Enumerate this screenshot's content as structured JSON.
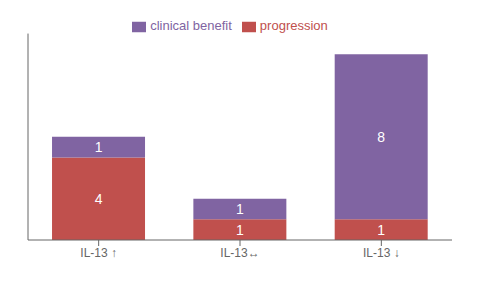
{
  "chart_data": {
    "type": "bar",
    "stacked": true,
    "categories": [
      "IL-13 ↑",
      "IL-13↔",
      "IL-13 ↓"
    ],
    "series": [
      {
        "name": "progression",
        "color": "#c0504d",
        "values": [
          4,
          1,
          1
        ]
      },
      {
        "name": "clinical benefit",
        "color": "#8064a2",
        "values": [
          1,
          1,
          8
        ]
      }
    ],
    "ylim": [
      0,
      10
    ],
    "data_labels": true,
    "tick_labels": "x",
    "legend": "top"
  }
}
